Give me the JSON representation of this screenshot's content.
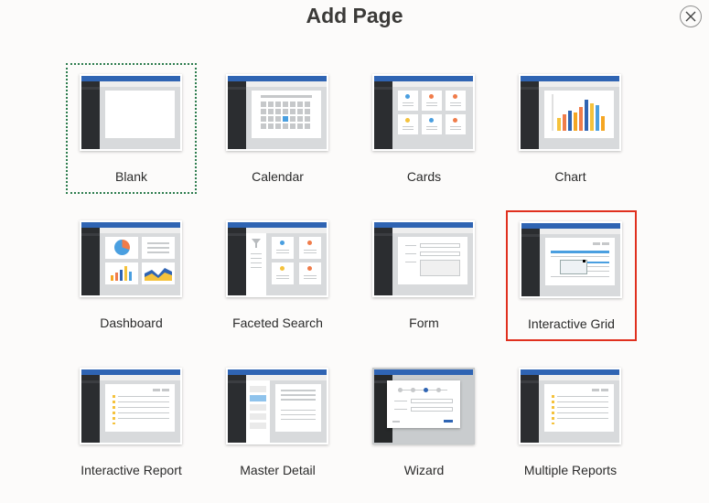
{
  "dialog": {
    "title": "Add Page"
  },
  "tiles": [
    {
      "label": "Blank"
    },
    {
      "label": "Calendar"
    },
    {
      "label": "Cards"
    },
    {
      "label": "Chart"
    },
    {
      "label": "Dashboard"
    },
    {
      "label": "Faceted Search"
    },
    {
      "label": "Form"
    },
    {
      "label": "Interactive Grid"
    },
    {
      "label": "Interactive Report"
    },
    {
      "label": "Master Detail"
    },
    {
      "label": "Wizard"
    },
    {
      "label": "Multiple Reports"
    }
  ],
  "state": {
    "focused": "Blank",
    "selected": "Interactive Grid"
  },
  "colors": {
    "accent": "#2f64b3",
    "selected_border": "#e0301e",
    "focus_border": "#2e7d4f"
  },
  "icons": {
    "close": "close-icon"
  }
}
